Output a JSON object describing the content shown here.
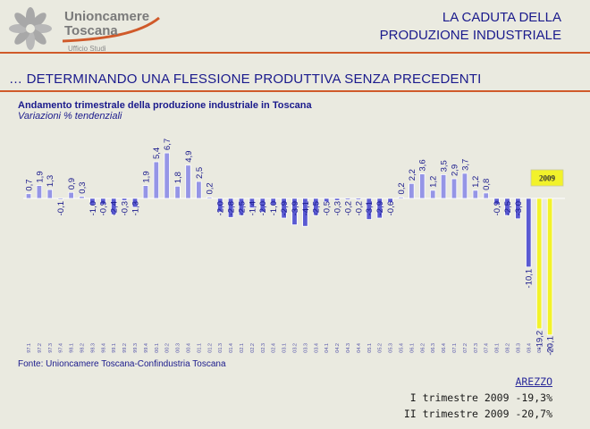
{
  "header": {
    "logo_line1": "Unioncamere",
    "logo_line2": "Toscana",
    "logo_line3": "Ufficio Studi",
    "title_line1": "LA CADUTA DELLA",
    "title_line2": "PRODUZIONE INDUSTRIALE"
  },
  "subtitle": "… DETERMINANDO UNA FLESSIONE PRODUTTIVA SENZA PRECEDENTI",
  "colors": {
    "positive": "#9595e6",
    "negative": "#5a5ad2",
    "highlight": "#f2f22a",
    "text": "#1a1a8c",
    "rule": "#d05a2a"
  },
  "chart_data": {
    "type": "bar",
    "title": "Andamento trimestrale della produzione industriale in Toscana",
    "subtitle": "Variazioni % tendenziali",
    "highlight_label": "2009",
    "categories": [
      "97.1",
      "97.2",
      "97.3",
      "97.4",
      "98.1",
      "98.2",
      "98.3",
      "98.4",
      "99.1",
      "99.2",
      "99.3",
      "99.4",
      "00.1",
      "00.2",
      "00.3",
      "00.4",
      "01.1",
      "01.2",
      "01.3",
      "01.4",
      "02.1",
      "02.2",
      "02.3",
      "02.4",
      "03.1",
      "03.2",
      "03.3",
      "03.4",
      "04.1",
      "04.2",
      "04.3",
      "04.4",
      "05.1",
      "05.2",
      "05.3",
      "05.4",
      "06.1",
      "06.2",
      "06.3",
      "06.4",
      "07.1",
      "07.2",
      "07.3",
      "07.4",
      "08.1",
      "08.2",
      "08.3",
      "08.4",
      "09.1",
      "09.2"
    ],
    "values": [
      0.7,
      1.9,
      1.3,
      -0.1,
      0.9,
      0.3,
      -1.0,
      -0.9,
      -2.4,
      -0.3,
      -1.3,
      1.9,
      5.4,
      6.7,
      1.8,
      4.9,
      2.5,
      0.2,
      -2.0,
      -2.8,
      -2.5,
      -1.4,
      -2.0,
      -1.0,
      -2.9,
      -3.9,
      -4.1,
      -2.5,
      -0.5,
      -0.3,
      -0.2,
      -0.2,
      -3.1,
      -2.9,
      -0.6,
      0.2,
      2.2,
      3.6,
      1.2,
      3.5,
      2.9,
      3.7,
      1.2,
      0.8,
      -0.9,
      -2.5,
      -3.0,
      -10.1,
      -19.2,
      -20.1
    ],
    "value_labels": [
      "0,7",
      "1,9",
      "1,3",
      "-0,1",
      "0,9",
      "0,3",
      "-1,0",
      "-0,9",
      "-2,4",
      "-0,3",
      "-1,3",
      "1,9",
      "5,4",
      "6,7",
      "1,8",
      "4,9",
      "2,5",
      "0,2",
      "-2,0",
      "-2,8",
      "-2,5",
      "-1,4",
      "-2,0",
      "-1,0",
      "-2,9",
      "-3,9",
      "-4,1",
      "-2,5",
      "-0,5",
      "-0,3",
      "-0,2",
      "-0,2",
      "-3,1",
      "-2,9",
      "-0,6",
      "0,2",
      "2,2",
      "3,6",
      "1,2",
      "3,5",
      "2,9",
      "3,7",
      "1,2",
      "0,8",
      "-0,9",
      "-2,5",
      "-3,0",
      "-10,1",
      "-19,2",
      "-20,1"
    ],
    "highlight_indices": [
      48,
      49
    ],
    "ylim": [
      -20.1,
      6.7
    ]
  },
  "source": "Fonte: Unioncamere Toscana-Confindustria Toscana",
  "notes": {
    "place": "AREZZO",
    "line1": "I trimestre 2009 -19,3%",
    "line2": "II trimestre 2009 -20,7%"
  }
}
